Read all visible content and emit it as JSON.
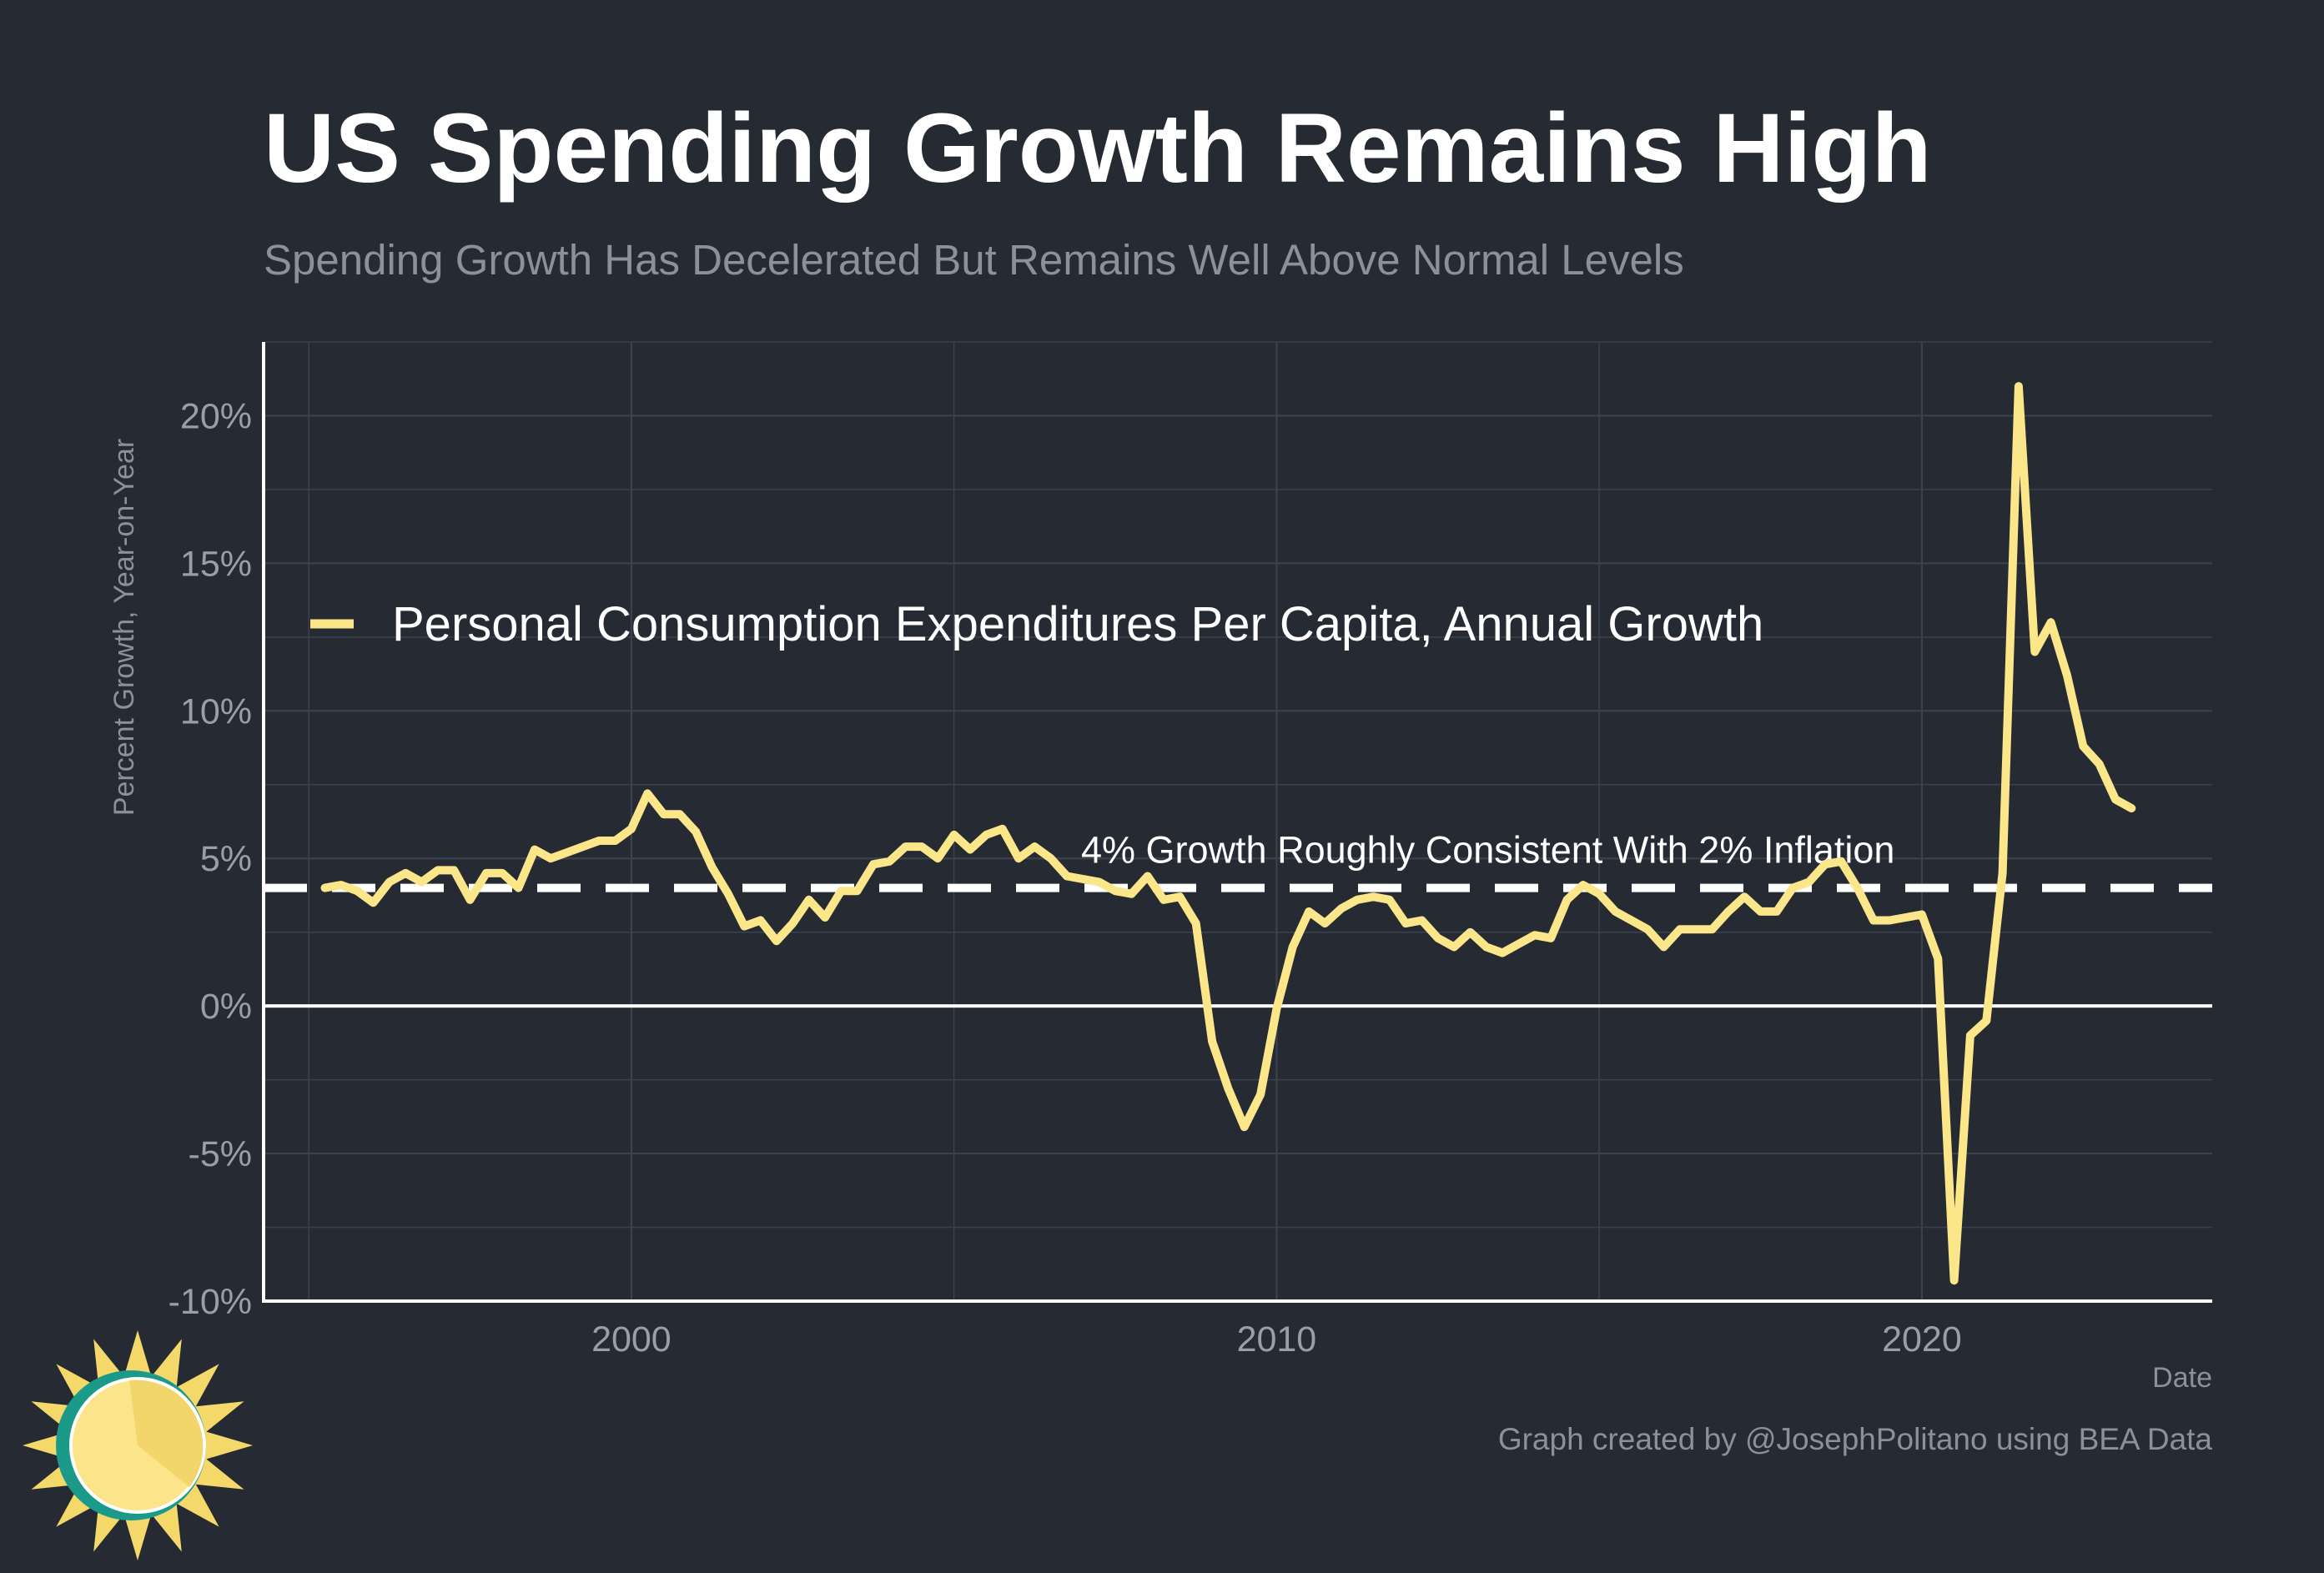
{
  "header": {
    "title": "US Spending Growth Remains High",
    "subtitle": "Spending Growth Has Decelerated But Remains Well Above Normal Levels"
  },
  "footer": {
    "credit": "Graph created by @JosephPolitano using BEA Data"
  },
  "colors": {
    "background": "#252a33",
    "line": "#fce68a",
    "reference": "#ffffff",
    "grid": "#3c424d",
    "logo_sun": "#f4d86a",
    "logo_ring": "#1b9a8a"
  },
  "logo": {
    "icon": "sun-logo-icon"
  },
  "chart_data": {
    "type": "line",
    "xlabel": "Date",
    "ylabel": "Percent Growth, Year-on-Year",
    "xlim": [
      1994.3,
      2024.5
    ],
    "ylim": [
      -10,
      22.5
    ],
    "x_ticks": [
      {
        "value": 2000,
        "label": "2000"
      },
      {
        "value": 2010,
        "label": "2010"
      },
      {
        "value": 2020,
        "label": "2020"
      }
    ],
    "y_ticks": [
      {
        "value": -10,
        "label": "-10%"
      },
      {
        "value": -5,
        "label": "-5%"
      },
      {
        "value": 0,
        "label": "0%"
      },
      {
        "value": 5,
        "label": "5%"
      },
      {
        "value": 10,
        "label": "10%"
      },
      {
        "value": 15,
        "label": "15%"
      },
      {
        "value": 20,
        "label": "20%"
      }
    ],
    "grid": true,
    "legend": {
      "placement": "top-left",
      "entries": [
        "Personal Consumption Expenditures Per Capita, Annual Growth"
      ]
    },
    "reference_lines": [
      {
        "y": 4,
        "style": "dashed",
        "label": "4% Growth Roughly Consistent With 2% Inflation"
      },
      {
        "y": 0,
        "style": "solid",
        "label": ""
      }
    ],
    "series": [
      {
        "name": "Personal Consumption Expenditures Per Capita, Annual Growth",
        "x": [
          1995.25,
          1995.5,
          1995.75,
          1996.0,
          1996.25,
          1996.5,
          1996.75,
          1997.0,
          1997.25,
          1997.5,
          1997.75,
          1998.0,
          1998.25,
          1998.5,
          1998.75,
          1999.0,
          1999.25,
          1999.5,
          1999.75,
          2000.0,
          2000.25,
          2000.5,
          2000.75,
          2001.0,
          2001.25,
          2001.5,
          2001.75,
          2002.0,
          2002.25,
          2002.5,
          2002.75,
          2003.0,
          2003.25,
          2003.5,
          2003.75,
          2004.0,
          2004.25,
          2004.5,
          2004.75,
          2005.0,
          2005.25,
          2005.5,
          2005.75,
          2006.0,
          2006.25,
          2006.5,
          2006.75,
          2007.0,
          2007.25,
          2007.5,
          2007.75,
          2008.0,
          2008.25,
          2008.5,
          2008.75,
          2009.0,
          2009.25,
          2009.5,
          2009.75,
          2010.0,
          2010.25,
          2010.5,
          2010.75,
          2011.0,
          2011.25,
          2011.5,
          2011.75,
          2012.0,
          2012.25,
          2012.5,
          2012.75,
          2013.0,
          2013.25,
          2013.5,
          2013.75,
          2014.0,
          2014.25,
          2014.5,
          2014.75,
          2015.0,
          2015.25,
          2015.5,
          2015.75,
          2016.0,
          2016.25,
          2016.5,
          2016.75,
          2017.0,
          2017.25,
          2017.5,
          2017.75,
          2018.0,
          2018.25,
          2018.5,
          2018.75,
          2019.0,
          2019.25,
          2019.5,
          2019.75,
          2020.0,
          2020.25,
          2020.5,
          2020.75,
          2021.0,
          2021.25,
          2021.5,
          2021.75,
          2022.0,
          2022.25,
          2022.5,
          2022.75,
          2023.0,
          2023.25
        ],
        "values": [
          4.0,
          4.1,
          3.9,
          3.5,
          4.2,
          4.5,
          4.2,
          4.6,
          4.6,
          3.6,
          4.5,
          4.5,
          4.0,
          5.3,
          5.0,
          5.2,
          5.4,
          5.6,
          5.6,
          6.0,
          7.2,
          6.5,
          6.5,
          5.9,
          4.7,
          3.8,
          2.7,
          2.9,
          2.2,
          2.8,
          3.6,
          3.0,
          3.9,
          3.9,
          4.8,
          4.9,
          5.4,
          5.4,
          5.0,
          5.8,
          5.3,
          5.8,
          6.0,
          5.0,
          5.4,
          5.0,
          4.4,
          4.3,
          4.2,
          3.9,
          3.8,
          4.4,
          3.6,
          3.7,
          2.8,
          -1.2,
          -2.8,
          -4.1,
          -3.0,
          -0.1,
          2.0,
          3.2,
          2.8,
          3.3,
          3.6,
          3.7,
          3.6,
          2.8,
          2.9,
          2.3,
          2.0,
          2.5,
          2.0,
          1.8,
          2.1,
          2.4,
          2.3,
          3.6,
          4.1,
          3.8,
          3.2,
          2.9,
          2.6,
          2.0,
          2.6,
          2.6,
          2.6,
          3.2,
          3.7,
          3.2,
          3.2,
          4.0,
          4.2,
          4.8,
          4.9,
          4.0,
          2.9,
          2.9,
          3.0,
          3.1,
          1.6,
          -9.3,
          -1.0,
          -0.5,
          4.5,
          21.0,
          12.0,
          13.0,
          11.2,
          8.8,
          8.2,
          7.0,
          6.7
        ]
      }
    ]
  }
}
